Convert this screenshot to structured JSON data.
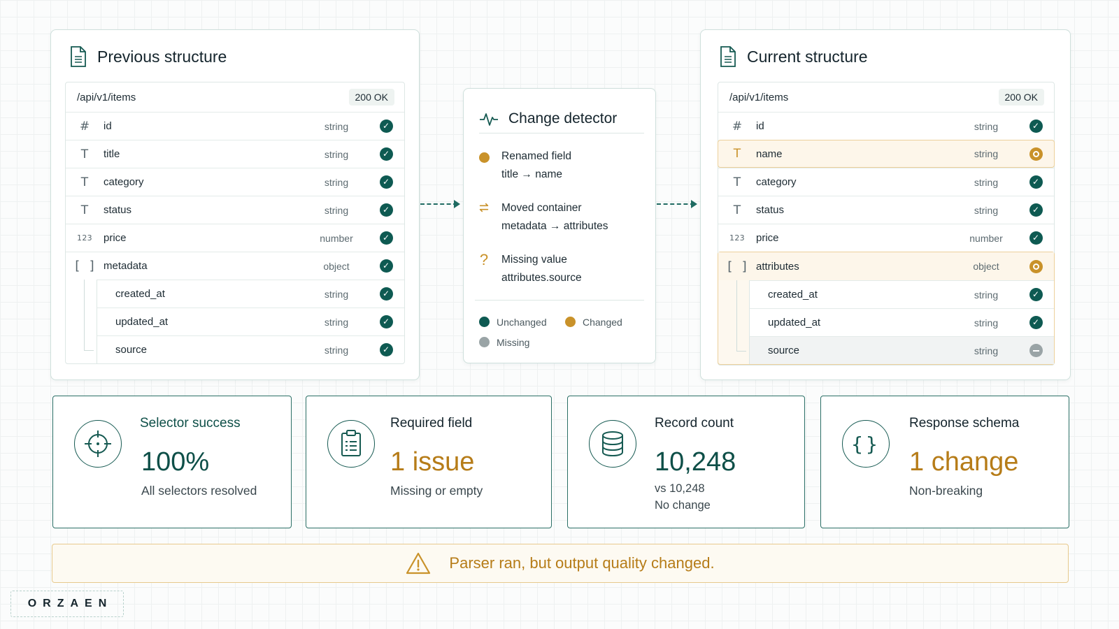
{
  "previous": {
    "title": "Previous structure",
    "endpoint": "/api/v1/items",
    "status": "200 OK",
    "fields": [
      {
        "icon": "#",
        "name": "id",
        "type": "string",
        "state": "unchanged"
      },
      {
        "icon": "T",
        "name": "title",
        "type": "string",
        "state": "unchanged"
      },
      {
        "icon": "T",
        "name": "category",
        "type": "string",
        "state": "unchanged"
      },
      {
        "icon": "T",
        "name": "status",
        "type": "string",
        "state": "unchanged"
      },
      {
        "icon": "123",
        "name": "price",
        "type": "number",
        "state": "unchanged"
      },
      {
        "icon": "[ ]",
        "name": "metadata",
        "type": "object",
        "state": "unchanged"
      },
      {
        "icon": "",
        "name": "created_at",
        "type": "string",
        "state": "unchanged"
      },
      {
        "icon": "",
        "name": "updated_at",
        "type": "string",
        "state": "unchanged"
      },
      {
        "icon": "",
        "name": "source",
        "type": "string",
        "state": "unchanged"
      }
    ]
  },
  "current": {
    "title": "Current structure",
    "endpoint": "/api/v1/items",
    "status": "200 OK",
    "fields": [
      {
        "icon": "#",
        "name": "id",
        "type": "string",
        "state": "unchanged"
      },
      {
        "icon": "T",
        "name": "name",
        "type": "string",
        "state": "changed"
      },
      {
        "icon": "T",
        "name": "category",
        "type": "string",
        "state": "unchanged"
      },
      {
        "icon": "T",
        "name": "status",
        "type": "string",
        "state": "unchanged"
      },
      {
        "icon": "123",
        "name": "price",
        "type": "number",
        "state": "unchanged"
      },
      {
        "icon": "[ ]",
        "name": "attributes",
        "type": "object",
        "state": "changed"
      },
      {
        "icon": "",
        "name": "created_at",
        "type": "string",
        "state": "unchanged"
      },
      {
        "icon": "",
        "name": "updated_at",
        "type": "string",
        "state": "unchanged"
      },
      {
        "icon": "",
        "name": "source",
        "type": "string",
        "state": "missing"
      }
    ]
  },
  "detector": {
    "title": "Change detector",
    "changes": [
      {
        "label": "Renamed field",
        "detail": "title → name",
        "icon": "changed-dot"
      },
      {
        "label": "Moved container",
        "detail": "metadata → attributes",
        "icon": "swap-arrows-icon"
      },
      {
        "label": "Missing value",
        "detail": "attributes.source",
        "icon": "question-icon"
      }
    ],
    "legend": {
      "unchanged": "Unchanged",
      "changed": "Changed",
      "missing": "Missing"
    }
  },
  "metrics": [
    {
      "label": "Selector success",
      "value": "100%",
      "sub": "All selectors resolved",
      "sub2": "",
      "icon": "crosshair-icon"
    },
    {
      "label": "Required field",
      "value": "1 issue",
      "sub": "Missing or empty",
      "sub2": "",
      "icon": "clipboard-icon"
    },
    {
      "label": "Record count",
      "value": "10,248",
      "sub": "vs 10,248",
      "sub2": "No change",
      "icon": "database-icon"
    },
    {
      "label": "Response schema",
      "value": "1 change",
      "sub": "Non-breaking",
      "sub2": "",
      "icon": "braces-icon"
    }
  ],
  "banner": {
    "text": "Parser ran, but output quality changed."
  },
  "brand": {
    "name": "ORZAEN"
  },
  "colors": {
    "teal": "#0e5a52",
    "gold": "#c9922a",
    "gray": "#9aa4a6",
    "accent_text": "#b67c18"
  }
}
